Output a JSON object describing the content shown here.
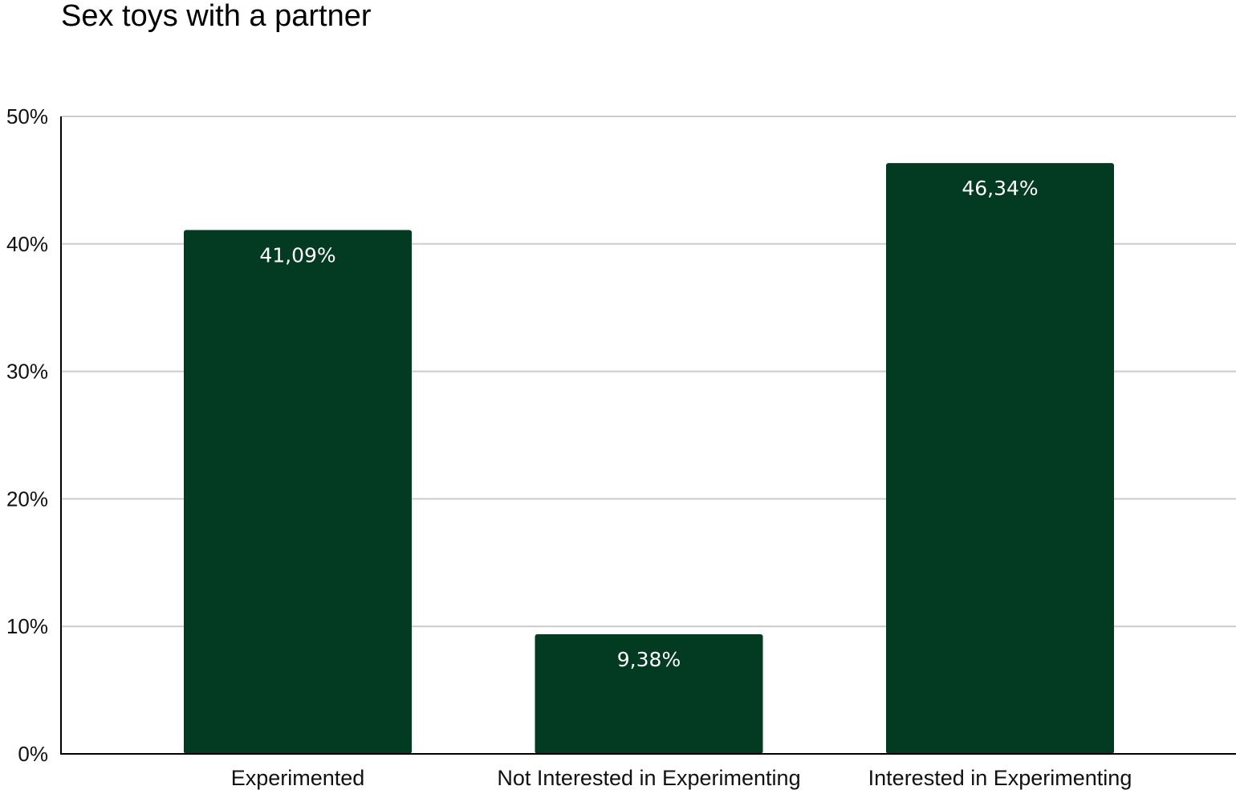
{
  "chart_data": {
    "type": "bar",
    "title": "Sex toys with a partner",
    "categories": [
      "Experimented",
      "Not Interested in Experimenting",
      "Interested in Experimenting"
    ],
    "values": [
      41.09,
      9.38,
      46.34
    ],
    "data_labels": [
      "41,09%",
      "9,38%",
      "46,34%"
    ],
    "ylim": [
      0,
      50
    ],
    "yticks": [
      0,
      10,
      20,
      30,
      40,
      50
    ],
    "ytick_labels": [
      "0%",
      "10%",
      "20%",
      "30%",
      "40%",
      "50%"
    ],
    "xlabel": "",
    "ylabel": "",
    "grid": true,
    "legend": "none",
    "colors": {
      "bar": "#023a22",
      "grid": "#cccccc",
      "axis": "#000000"
    }
  }
}
